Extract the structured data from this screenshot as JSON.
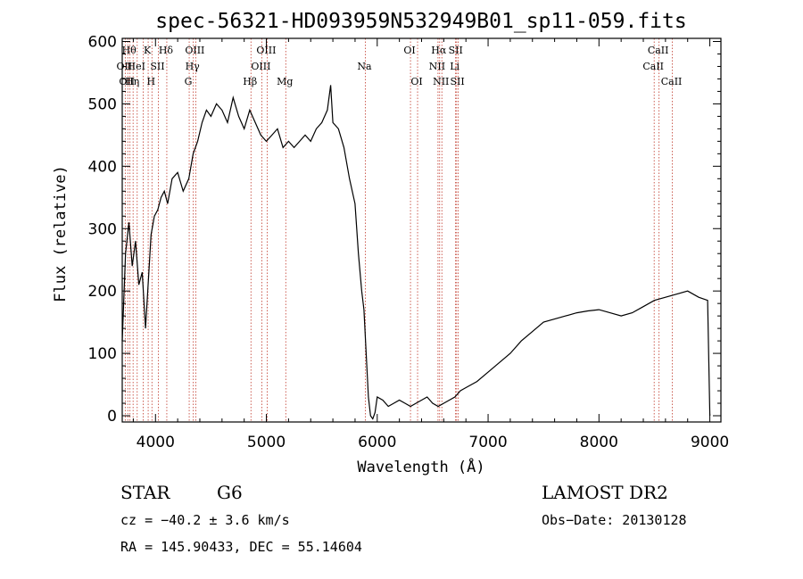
{
  "chart_data": {
    "type": "line",
    "title": "spec-56321-HD093959N532949B01_sp11-059.fits",
    "xlabel": "Wavelength (Å)",
    "ylabel": "Flux (relative)",
    "xlim": [
      3700,
      9100
    ],
    "ylim": [
      -10,
      605
    ],
    "x_ticks": [
      4000,
      5000,
      6000,
      7000,
      8000,
      9000
    ],
    "y_ticks": [
      0,
      100,
      200,
      300,
      400,
      500,
      600
    ],
    "grid": false,
    "series": [
      {
        "x": [
          3700,
          3730,
          3760,
          3790,
          3820,
          3850,
          3880,
          3910,
          3930,
          3960,
          3990,
          4020,
          4050,
          4080,
          4110,
          4150,
          4200,
          4250,
          4300,
          4340,
          4380,
          4420,
          4460,
          4500,
          4550,
          4600,
          4650,
          4700,
          4750,
          4800,
          4850,
          4900,
          4950,
          5000,
          5050,
          5100,
          5150,
          5200,
          5250,
          5300,
          5350,
          5400,
          5450,
          5500,
          5550,
          5580,
          5600,
          5650,
          5700,
          5750,
          5800,
          5830,
          5860,
          5880,
          5900,
          5920,
          5940,
          5960,
          5980,
          6000,
          6050,
          6100,
          6150,
          6200,
          6250,
          6300,
          6350,
          6400,
          6450,
          6500,
          6550,
          6600,
          6650,
          6700,
          6750,
          6800,
          6900,
          7000,
          7100,
          7200,
          7300,
          7400,
          7500,
          7600,
          7700,
          7800,
          7900,
          8000,
          8100,
          8200,
          8300,
          8400,
          8500,
          8600,
          8700,
          8800,
          8900,
          8980,
          9000
        ],
        "y": [
          120,
          260,
          310,
          240,
          280,
          210,
          230,
          140,
          200,
          290,
          320,
          330,
          350,
          360,
          340,
          380,
          390,
          360,
          380,
          420,
          440,
          470,
          490,
          480,
          500,
          490,
          470,
          510,
          480,
          460,
          490,
          470,
          450,
          440,
          450,
          460,
          430,
          440,
          430,
          440,
          450,
          440,
          460,
          470,
          490,
          530,
          470,
          460,
          430,
          380,
          340,
          260,
          200,
          170,
          100,
          30,
          0,
          -5,
          5,
          30,
          25,
          15,
          20,
          25,
          20,
          15,
          20,
          25,
          30,
          20,
          15,
          20,
          25,
          30,
          40,
          45,
          55,
          70,
          85,
          100,
          120,
          135,
          150,
          155,
          160,
          165,
          168,
          170,
          165,
          160,
          165,
          175,
          185,
          190,
          195,
          200,
          190,
          185,
          0
        ]
      }
    ],
    "lines": [
      {
        "x": 3727,
        "label": "OII",
        "row": 1
      },
      {
        "x": 3750,
        "label": "OII",
        "row": 2
      },
      {
        "x": 3770,
        "label": "Hθ",
        "row": 0
      },
      {
        "x": 3798,
        "label": "Hη",
        "row": 2
      },
      {
        "x": 3835,
        "label": "HeI",
        "row": 1
      },
      {
        "x": 3889,
        "label": "",
        "row": 0
      },
      {
        "x": 3934,
        "label": "K",
        "row": 0
      },
      {
        "x": 3968,
        "label": "H",
        "row": 2
      },
      {
        "x": 4026,
        "label": "SII",
        "row": 1
      },
      {
        "x": 4102,
        "label": "Hδ",
        "row": 0
      },
      {
        "x": 4304,
        "label": "G",
        "row": 2
      },
      {
        "x": 4341,
        "label": "Hγ",
        "row": 1
      },
      {
        "x": 4363,
        "label": "OIII",
        "row": 0
      },
      {
        "x": 4861,
        "label": "Hβ",
        "row": 2
      },
      {
        "x": 4959,
        "label": "OIII",
        "row": 1
      },
      {
        "x": 5007,
        "label": "OIII",
        "row": 0
      },
      {
        "x": 5175,
        "label": "Mg",
        "row": 2
      },
      {
        "x": 5893,
        "label": "Na",
        "row": 1
      },
      {
        "x": 6300,
        "label": "OI",
        "row": 0
      },
      {
        "x": 6364,
        "label": "OI",
        "row": 2
      },
      {
        "x": 6548,
        "label": "NII",
        "row": 1
      },
      {
        "x": 6563,
        "label": "Hα",
        "row": 0
      },
      {
        "x": 6583,
        "label": "NII",
        "row": 2
      },
      {
        "x": 6707,
        "label": "Li",
        "row": 1
      },
      {
        "x": 6716,
        "label": "SII",
        "row": 0
      },
      {
        "x": 6731,
        "label": "SII",
        "row": 2
      },
      {
        "x": 8498,
        "label": "CaII",
        "row": 1
      },
      {
        "x": 8542,
        "label": "CaII",
        "row": 0
      },
      {
        "x": 8662,
        "label": "CaII",
        "row": 2
      }
    ]
  },
  "info": {
    "object_class": "STAR",
    "subclass": "G6",
    "survey": "LAMOST DR2",
    "cz": "cz = −40.2 ± 3.6 km/s",
    "obs_date": "Obs−Date: 20130128",
    "radec": "RA = 145.90433, DEC =  55.14604"
  },
  "colors": {
    "line_marker": "#c0392b",
    "spectrum": "#000000",
    "axes": "#000000"
  }
}
